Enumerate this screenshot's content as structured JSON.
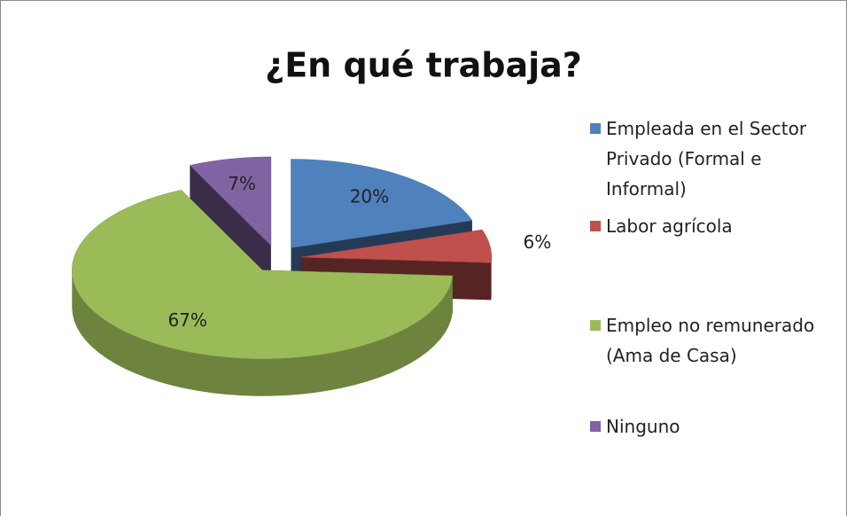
{
  "chart_data": {
    "type": "pie",
    "title": "¿En qué trabaja?",
    "categories": [
      "Empleada en el Sector Privado (Formal e Informal)",
      "Labor agrícola",
      "Empleo no remunerado (Ama de Casa)",
      "Ninguno"
    ],
    "values": [
      20,
      6,
      67,
      7
    ],
    "value_labels": [
      "20%",
      "6%",
      "67%",
      "7%"
    ],
    "colors": [
      "#4f81bd",
      "#c0504d",
      "#9bbb59",
      "#8064a2"
    ],
    "legend": "right"
  }
}
